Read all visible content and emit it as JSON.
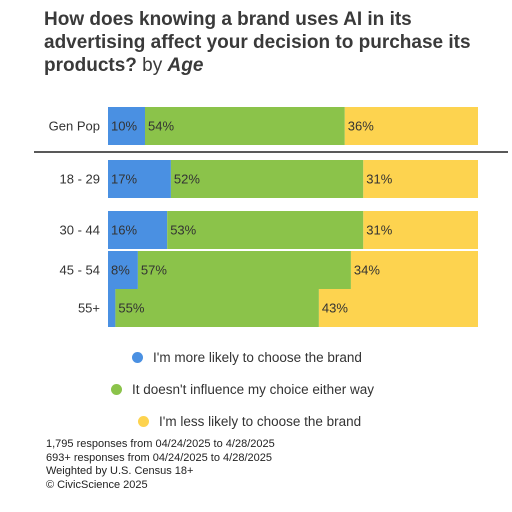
{
  "title": {
    "main": "How does knowing a brand uses AI in its advertising affect your decision to purchase its products?",
    "by": "by",
    "age": "Age"
  },
  "colors": {
    "more_likely": "#4a90e2",
    "no_influence": "#8bc34a",
    "less_likely": "#fdd34f"
  },
  "chart_data": {
    "type": "bar",
    "orientation": "horizontal",
    "stacked": true,
    "normalized": true,
    "categories": [
      "Gen Pop",
      "18 - 29",
      "30 - 44",
      "45 - 54",
      "55+"
    ],
    "series": [
      {
        "name": "I'm more likely to choose the brand",
        "values": [
          10,
          17,
          16,
          8,
          2
        ],
        "labels": [
          "10%",
          "17%",
          "16%",
          "8%",
          ""
        ]
      },
      {
        "name": "It doesn't influence my choice either way",
        "values": [
          54,
          52,
          53,
          57,
          55
        ],
        "labels": [
          "54%",
          "52%",
          "53%",
          "57%",
          "55%"
        ]
      },
      {
        "name": "I'm less likely to choose the brand",
        "values": [
          36,
          31,
          31,
          34,
          43
        ],
        "labels": [
          "36%",
          "31%",
          "31%",
          "34%",
          "43%"
        ]
      }
    ],
    "separator_after_category": "Gen Pop",
    "legend_position": "bottom"
  },
  "legend": [
    {
      "label": "I'm more likely to choose the brand"
    },
    {
      "label": "It doesn't influence my choice either way"
    },
    {
      "label": "I'm less likely to choose the brand"
    }
  ],
  "footer": [
    "1,795 responses from 04/24/2025 to 4/28/2025",
    "693+ responses from 04/24/2025 to 4/28/2025",
    "Weighted by U.S. Census 18+",
    "© CivicScience 2025"
  ]
}
